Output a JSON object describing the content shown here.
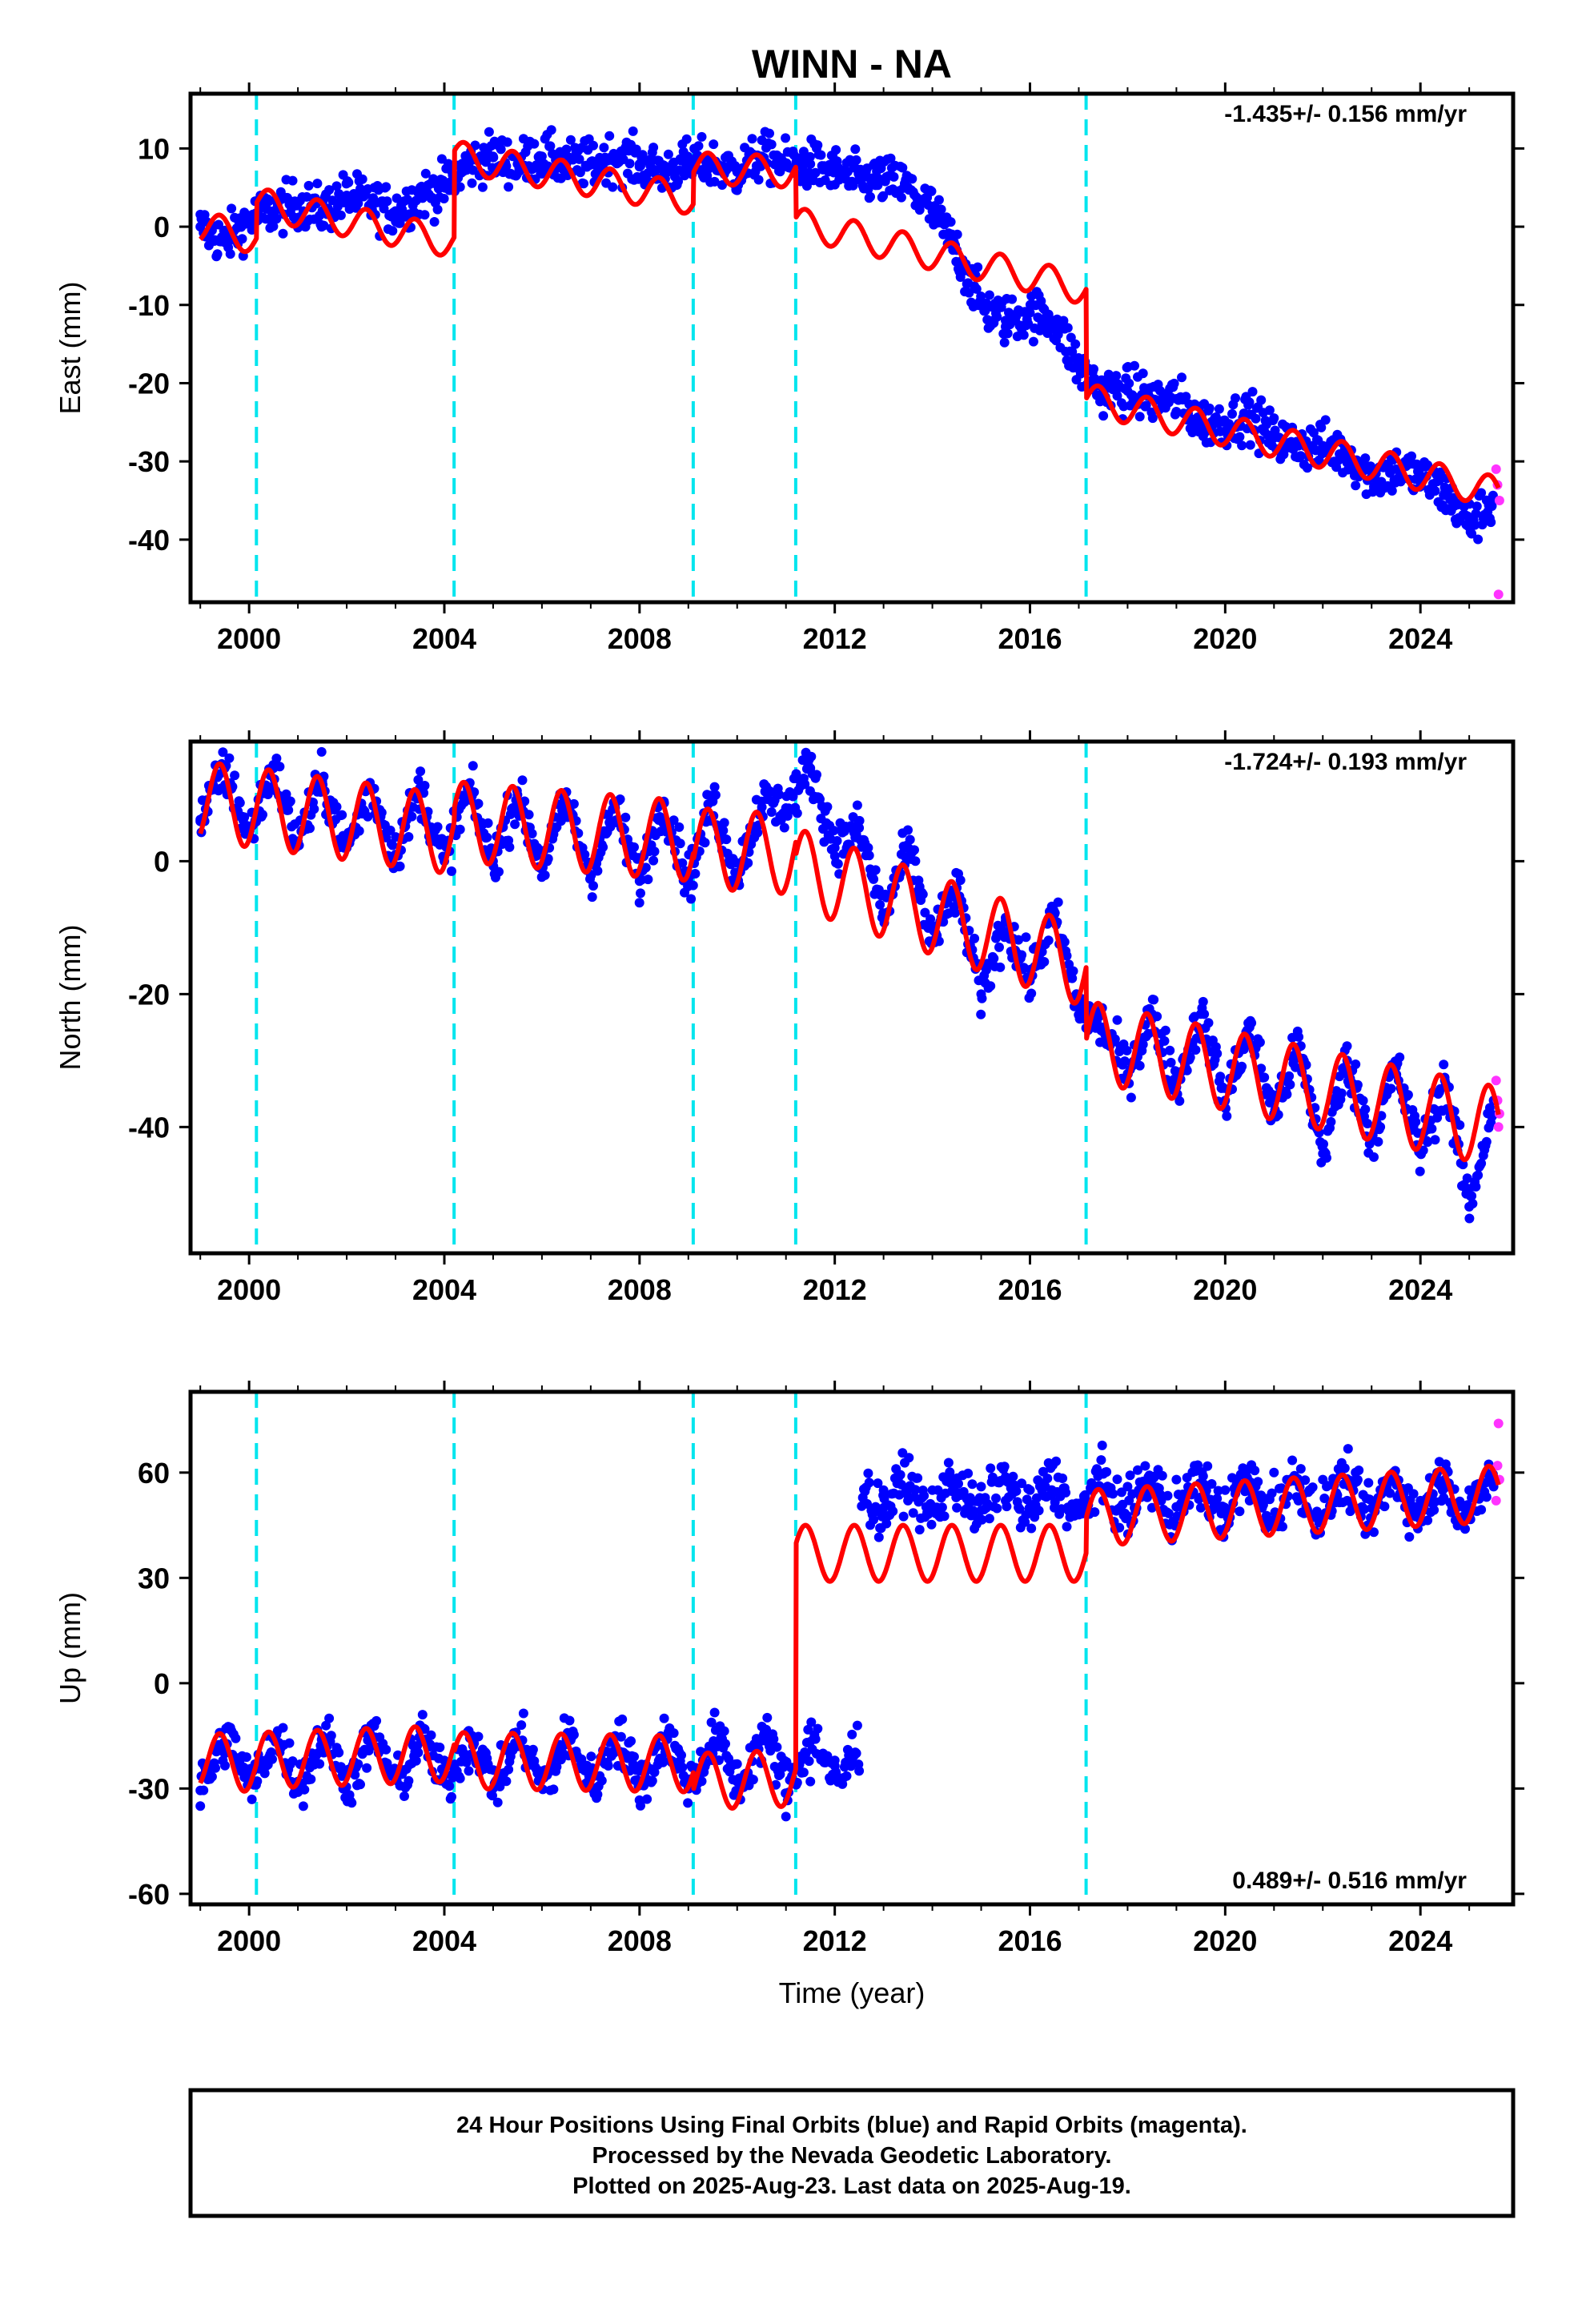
{
  "title": "WINN - NA",
  "xlabel": "Time (year)",
  "colors": {
    "final_orbit_dots": "#0000ff",
    "rapid_orbit_dots": "#ff33ff",
    "model_line": "#ff0000",
    "offset_lines": "#00e5ee",
    "frame": "#000000"
  },
  "footer": {
    "line1": "24 Hour Positions Using Final Orbits (blue) and Rapid Orbits (magenta).",
    "line2": "Processed by the Nevada Geodetic Laboratory.",
    "line3": "Plotted on 2025-Aug-23. Last data on 2025-Aug-19."
  },
  "chart_data": [
    {
      "type": "scatter",
      "component": "East",
      "ylabel": "East (mm)",
      "rate_label": "-1.435+/- 0.156 mm/yr",
      "rate_position": "top-right",
      "xlim": [
        1998.8,
        2025.9
      ],
      "ylim": [
        -48,
        17
      ],
      "xticks": [
        2000,
        2004,
        2008,
        2012,
        2016,
        2020,
        2024
      ],
      "yticks": [
        -40,
        -30,
        -20,
        -10,
        0,
        10
      ],
      "offset_epochs": [
        2000.15,
        2004.2,
        2009.1,
        2011.2,
        2017.15
      ],
      "series": [
        {
          "name": "Final Orbits",
          "x": [
            1999.0,
            1999.5,
            2000.0,
            2000.5,
            2001.0,
            2001.5,
            2002.0,
            2002.5,
            2003.0,
            2003.5,
            2004.0,
            2004.5,
            2005.0,
            2005.5,
            2006.0,
            2006.5,
            2007.0,
            2007.5,
            2008.0,
            2008.5,
            2009.0,
            2009.5,
            2010.0,
            2010.5,
            2011.0,
            2011.5,
            2012.0,
            2012.5,
            2013.0,
            2013.5,
            2014.0,
            2014.5,
            2015.0,
            2015.5,
            2016.0,
            2016.5,
            2017.0,
            2017.5,
            2018.0,
            2018.5,
            2019.0,
            2019.5,
            2020.0,
            2020.5,
            2021.0,
            2021.5,
            2022.0,
            2022.5,
            2023.0,
            2023.5,
            2024.0,
            2024.5,
            2025.0,
            2025.5
          ],
          "y": [
            0,
            -2,
            1,
            2,
            3,
            2,
            4,
            3,
            2,
            4,
            5,
            8,
            9,
            8,
            9,
            8,
            8,
            9,
            8,
            7,
            8,
            8,
            7,
            9,
            8,
            8,
            7,
            6,
            6,
            5,
            2,
            -3,
            -10,
            -12,
            -11,
            -12,
            -18,
            -21,
            -21,
            -22,
            -22,
            -25,
            -25,
            -24,
            -27,
            -28,
            -28,
            -29,
            -32,
            -31,
            -32,
            -34,
            -38,
            -35
          ]
        },
        {
          "name": "Rapid Orbits",
          "x": [
            2025.55,
            2025.58,
            2025.6,
            2025.62
          ],
          "y": [
            -31,
            -33,
            -47,
            -35
          ]
        },
        {
          "name": "Model",
          "x": [
            1999.0,
            2000.15,
            2000.15,
            2004.2,
            2004.2,
            2009.1,
            2009.1,
            2011.2,
            2011.2,
            2017.15,
            2017.15,
            2025.6
          ],
          "y": [
            0,
            -1.5,
            3,
            -2,
            9,
            3.5,
            7.5,
            7,
            0.5,
            -8,
            -22,
            -34
          ],
          "seasonal_amplitude_mm": 2.0
        }
      ]
    },
    {
      "type": "scatter",
      "component": "North",
      "ylabel": "North (mm)",
      "rate_label": "-1.724+/- 0.193 mm/yr",
      "rate_position": "top-right",
      "xlim": [
        1998.8,
        2025.9
      ],
      "ylim": [
        -59,
        18
      ],
      "xticks": [
        2000,
        2004,
        2008,
        2012,
        2016,
        2020,
        2024
      ],
      "yticks": [
        -40,
        -20,
        0
      ],
      "offset_epochs": [
        2000.15,
        2004.2,
        2009.1,
        2011.2,
        2017.15
      ],
      "series": [
        {
          "name": "Final Orbits",
          "x": [
            1999.0,
            1999.5,
            2000.0,
            2000.5,
            2001.0,
            2001.5,
            2002.0,
            2002.5,
            2003.0,
            2003.5,
            2004.0,
            2004.5,
            2005.0,
            2005.5,
            2006.0,
            2006.5,
            2007.0,
            2007.5,
            2008.0,
            2008.5,
            2009.0,
            2009.5,
            2010.0,
            2010.5,
            2011.0,
            2011.5,
            2012.0,
            2012.5,
            2013.0,
            2013.5,
            2014.0,
            2014.5,
            2015.0,
            2015.5,
            2016.0,
            2016.5,
            2017.0,
            2017.5,
            2018.0,
            2018.5,
            2019.0,
            2019.5,
            2020.0,
            2020.5,
            2021.0,
            2021.5,
            2022.0,
            2022.5,
            2023.0,
            2023.5,
            2024.0,
            2024.5,
            2025.0,
            2025.5
          ],
          "y": [
            6,
            14,
            4,
            14,
            3,
            12,
            2,
            11,
            1,
            11,
            0,
            11,
            0,
            10,
            -1,
            9,
            -2,
            8,
            -3,
            9,
            -3,
            9,
            -2,
            9,
            8,
            14,
            2,
            5,
            -8,
            2,
            -12,
            -4,
            -20,
            -9,
            -18,
            -8,
            -22,
            -25,
            -32,
            -23,
            -34,
            -23,
            -36,
            -25,
            -38,
            -28,
            -44,
            -30,
            -42,
            -31,
            -44,
            -33,
            -52,
            -36
          ]
        },
        {
          "name": "Rapid Orbits",
          "x": [
            2025.55,
            2025.58,
            2025.6,
            2025.62
          ],
          "y": [
            -33,
            -36,
            -40,
            -38
          ]
        },
        {
          "name": "Model",
          "x": [
            1999.0,
            2000.15,
            2000.15,
            2004.2,
            2004.2,
            2009.1,
            2009.1,
            2011.2,
            2011.2,
            2017.15,
            2017.15,
            2025.6
          ],
          "y": [
            9,
            8,
            8,
            4,
            6,
            3,
            2,
            1,
            -1,
            -16,
            -27,
            -40
          ],
          "seasonal_amplitude_mm": 6.0
        }
      ]
    },
    {
      "type": "scatter",
      "component": "Up",
      "ylabel": "Up (mm)",
      "rate_label": "0.489+/- 0.516 mm/yr",
      "rate_position": "bottom-right",
      "xlim": [
        1998.8,
        2025.9
      ],
      "ylim": [
        -63,
        83
      ],
      "xticks": [
        2000,
        2004,
        2008,
        2012,
        2016,
        2020,
        2024
      ],
      "yticks": [
        -60,
        -30,
        0,
        30,
        60
      ],
      "offset_epochs": [
        2000.15,
        2004.2,
        2009.1,
        2011.2,
        2017.15
      ],
      "series": [
        {
          "name": "Final Orbits",
          "x": [
            1999.0,
            1999.5,
            2000.0,
            2000.5,
            2001.0,
            2001.5,
            2002.0,
            2002.5,
            2003.0,
            2003.5,
            2004.0,
            2004.5,
            2005.0,
            2005.5,
            2006.0,
            2006.5,
            2007.0,
            2007.5,
            2008.0,
            2008.5,
            2009.0,
            2009.5,
            2010.0,
            2010.5,
            2011.0,
            2011.5,
            2012.0,
            2012.5,
            2013.0,
            2013.5,
            2014.0,
            2014.5,
            2015.0,
            2015.5,
            2016.0,
            2016.5,
            2017.0,
            2017.5,
            2018.0,
            2018.5,
            2019.0,
            2019.5,
            2020.0,
            2020.5,
            2021.0,
            2021.5,
            2022.0,
            2022.5,
            2013.0,
            2023.5,
            2024.0,
            2024.5,
            2025.0,
            2025.5
          ],
          "y": [
            -35,
            -20,
            -25,
            -15,
            -28,
            -15,
            -25,
            -12,
            -26,
            -12,
            -22,
            -25,
            -30,
            -18,
            -26,
            -15,
            -25,
            -15,
            -25,
            -18,
            -30,
            -20,
            -28,
            -22,
            -38,
            -28,
            -22,
            -25,
            55,
            52,
            55,
            50,
            56,
            52,
            55,
            50,
            48,
            52,
            56,
            50,
            58,
            50,
            55,
            52,
            60,
            52,
            58,
            52,
            50,
            58,
            52,
            58,
            55,
            56
          ]
        },
        {
          "name": "Rapid Orbits",
          "x": [
            2025.55,
            2025.58,
            2025.6,
            2025.62
          ],
          "y": [
            52,
            62,
            74,
            58
          ]
        },
        {
          "name": "Model",
          "x": [
            1999.0,
            2000.15,
            2000.15,
            2004.2,
            2004.2,
            2009.1,
            2009.1,
            2011.2,
            2011.2,
            2017.15,
            2017.15,
            2025.6
          ],
          "y": [
            -22,
            -23,
            -22,
            -20,
            -22,
            -23,
            -28,
            -27,
            37,
            37,
            47,
            54
          ],
          "seasonal_amplitude_mm": 8.0
        }
      ]
    }
  ]
}
